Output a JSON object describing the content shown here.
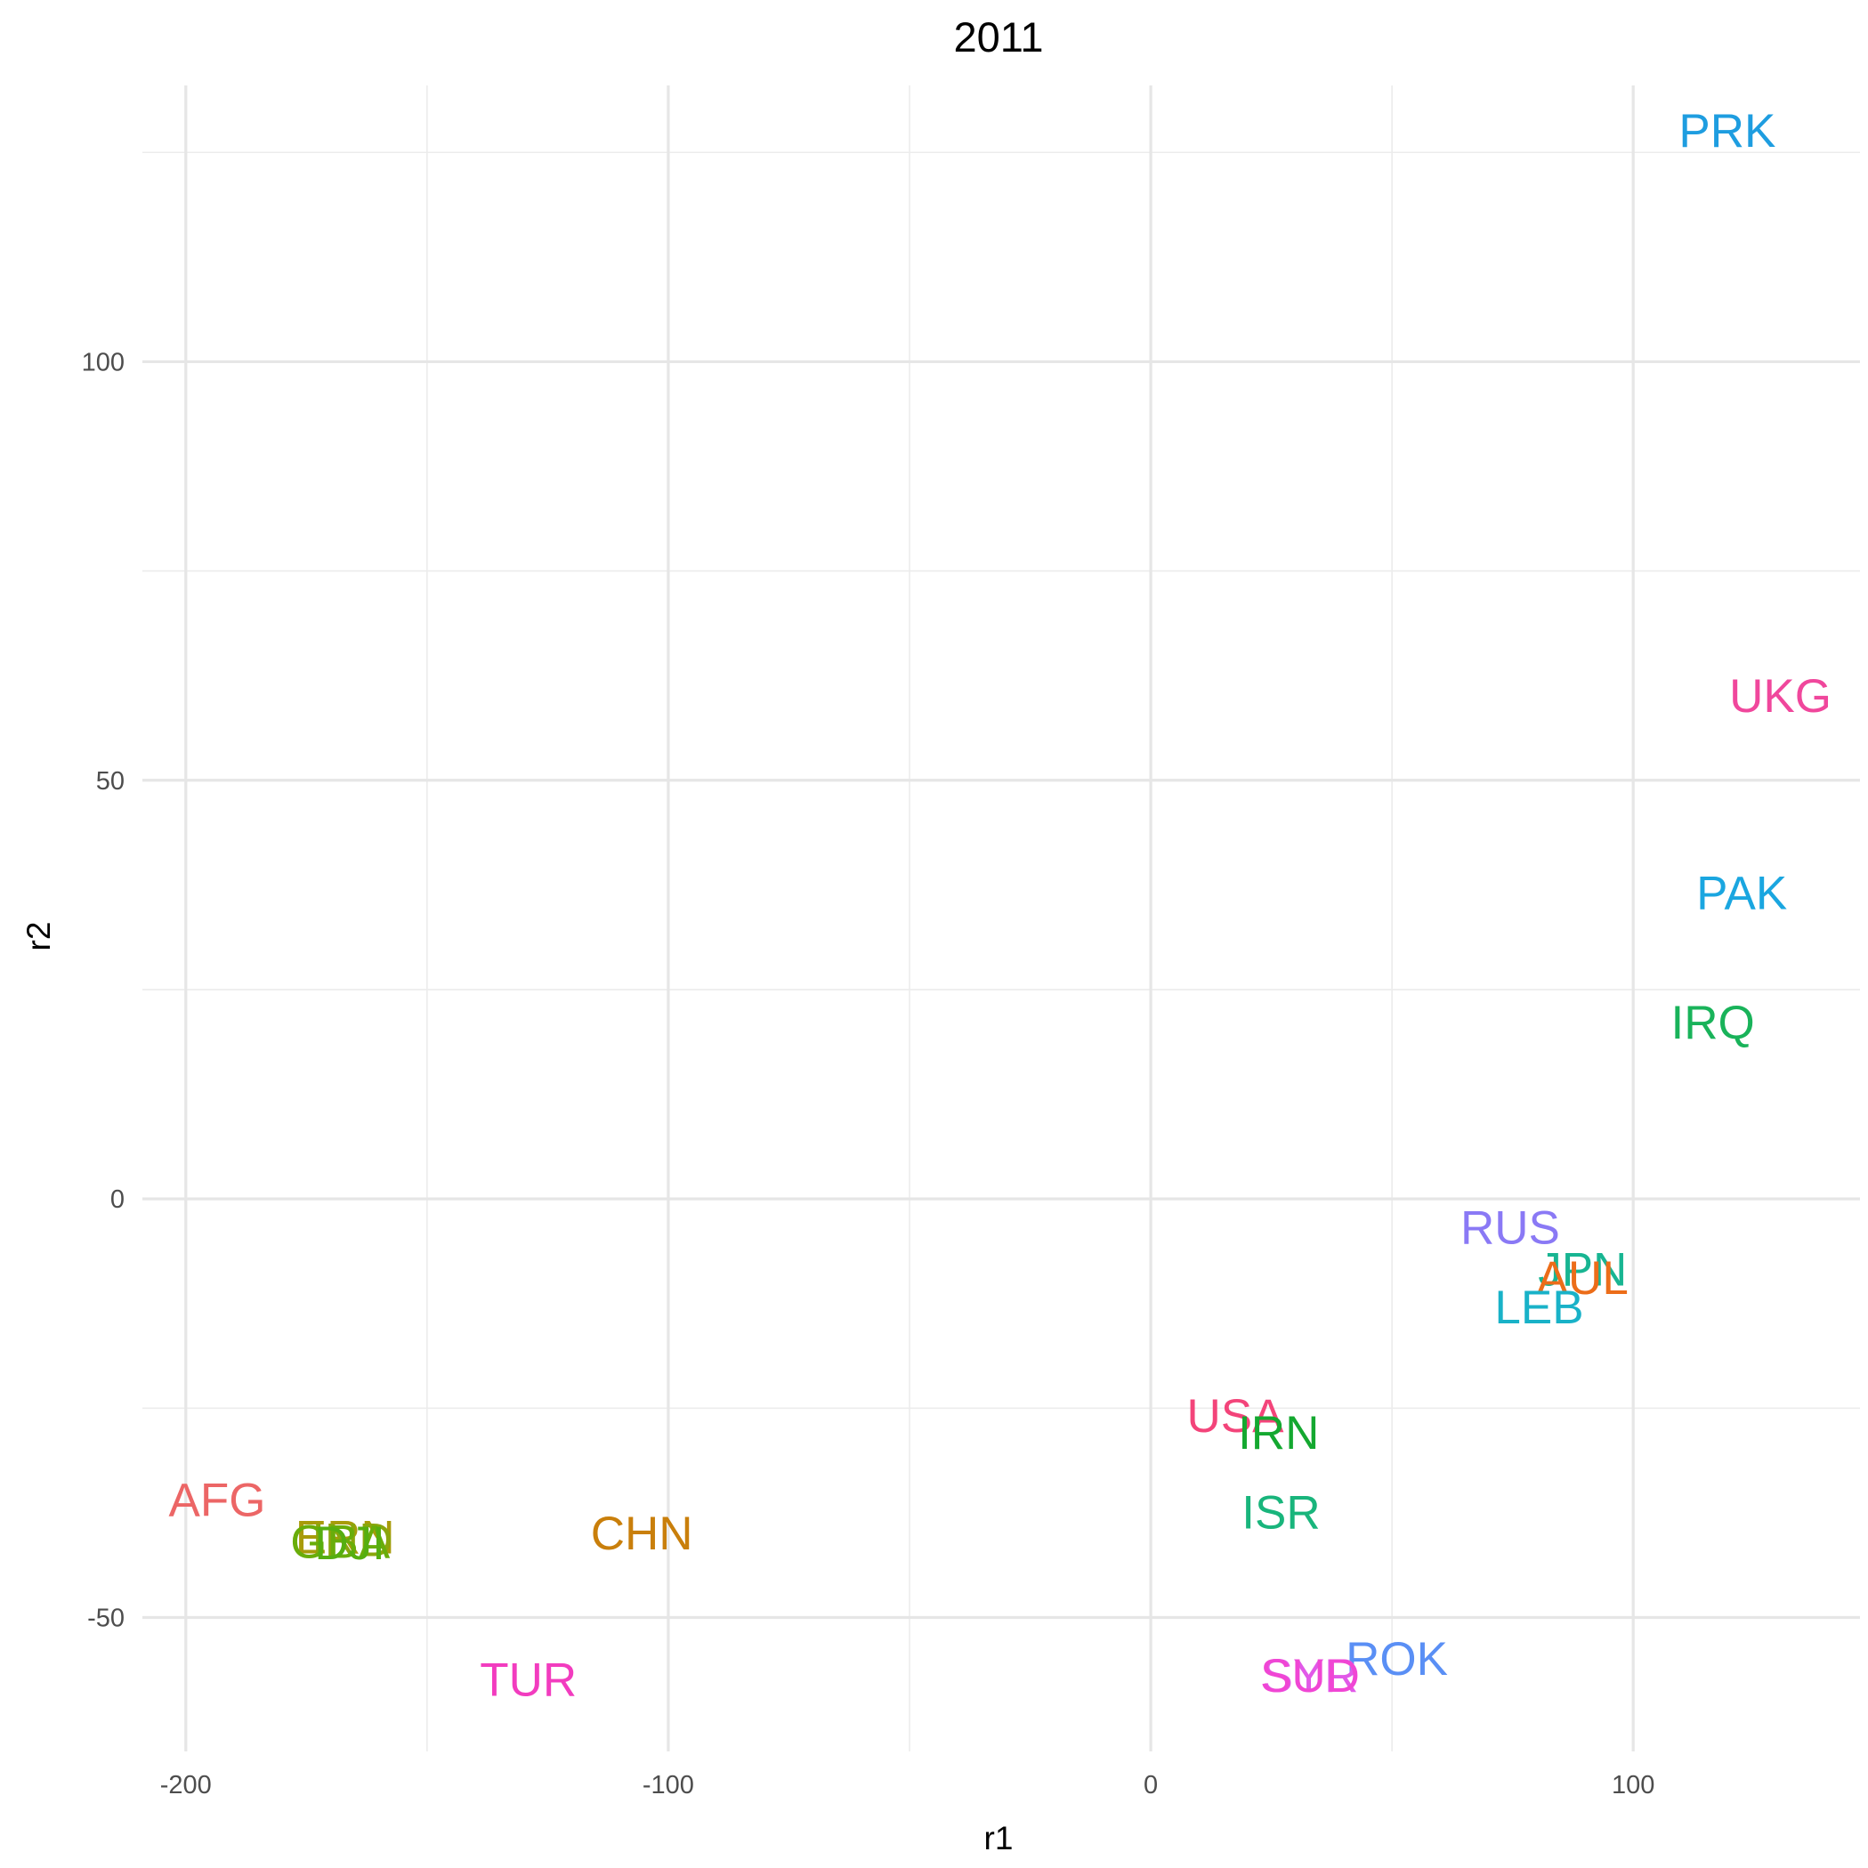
{
  "chart_data": {
    "type": "scatter",
    "title": "2011",
    "xlabel": "r1",
    "ylabel": "r2",
    "xlim": [
      -209,
      147
    ],
    "ylim": [
      -66,
      133
    ],
    "x_ticks": [
      -200,
      -100,
      0,
      100
    ],
    "y_ticks": [
      -50,
      0,
      50,
      100
    ],
    "x_tick_labels": [
      "-200",
      "-100",
      "0",
      "100"
    ],
    "y_tick_labels": [
      "-50",
      "0",
      "50",
      "100"
    ],
    "grid": true,
    "legend": "none",
    "points": [
      {
        "label": "PRK",
        "x": 119.5,
        "y": 127.5,
        "color": "#1e9de0"
      },
      {
        "label": "UKG",
        "x": 130.5,
        "y": 60.0,
        "color": "#f0479c"
      },
      {
        "label": "PAK",
        "x": 122.5,
        "y": 36.5,
        "color": "#1aa6e0"
      },
      {
        "label": "IRQ",
        "x": 116.5,
        "y": 21.0,
        "color": "#19b35a"
      },
      {
        "label": "RUS",
        "x": 74.5,
        "y": -3.5,
        "color": "#8a79f5"
      },
      {
        "label": "JPN",
        "x": 89.5,
        "y": -8.5,
        "color": "#18b592"
      },
      {
        "label": "AUL",
        "x": 89.5,
        "y": -9.5,
        "color": "#ec6d19"
      },
      {
        "label": "LEB",
        "x": 80.5,
        "y": -13.0,
        "color": "#19b2c8"
      },
      {
        "label": "USA",
        "x": 17.5,
        "y": -26.0,
        "color": "#f3447a"
      },
      {
        "label": "IRN",
        "x": 26.5,
        "y": -28.0,
        "color": "#14a830"
      },
      {
        "label": "ISR",
        "x": 27.0,
        "y": -37.5,
        "color": "#19b57c"
      },
      {
        "label": "ROK",
        "x": 51.0,
        "y": -55.0,
        "color": "#5a8ff5"
      },
      {
        "label": "SYR",
        "x": 33.0,
        "y": -57.0,
        "color": "#e159e8"
      },
      {
        "label": "SUD",
        "x": 33.0,
        "y": -57.0,
        "color": "#f046d4"
      },
      {
        "label": "AFG",
        "x": -193.5,
        "y": -36.0,
        "color": "#ec6666"
      },
      {
        "label": "CHN",
        "x": -105.5,
        "y": -40.0,
        "color": "#c97f0b"
      },
      {
        "label": "ERN",
        "x": -167.0,
        "y": -40.5,
        "color": "#a89b0a"
      },
      {
        "label": "IND",
        "x": -165.5,
        "y": -40.8,
        "color": "#8aa60c"
      },
      {
        "label": "GBA",
        "x": -168.0,
        "y": -41.0,
        "color": "#69ad0a"
      },
      {
        "label": "DJI",
        "x": -166.0,
        "y": -41.2,
        "color": "#55ae10"
      },
      {
        "label": "TUR",
        "x": -129.0,
        "y": -57.5,
        "color": "#f23cbf"
      }
    ]
  }
}
